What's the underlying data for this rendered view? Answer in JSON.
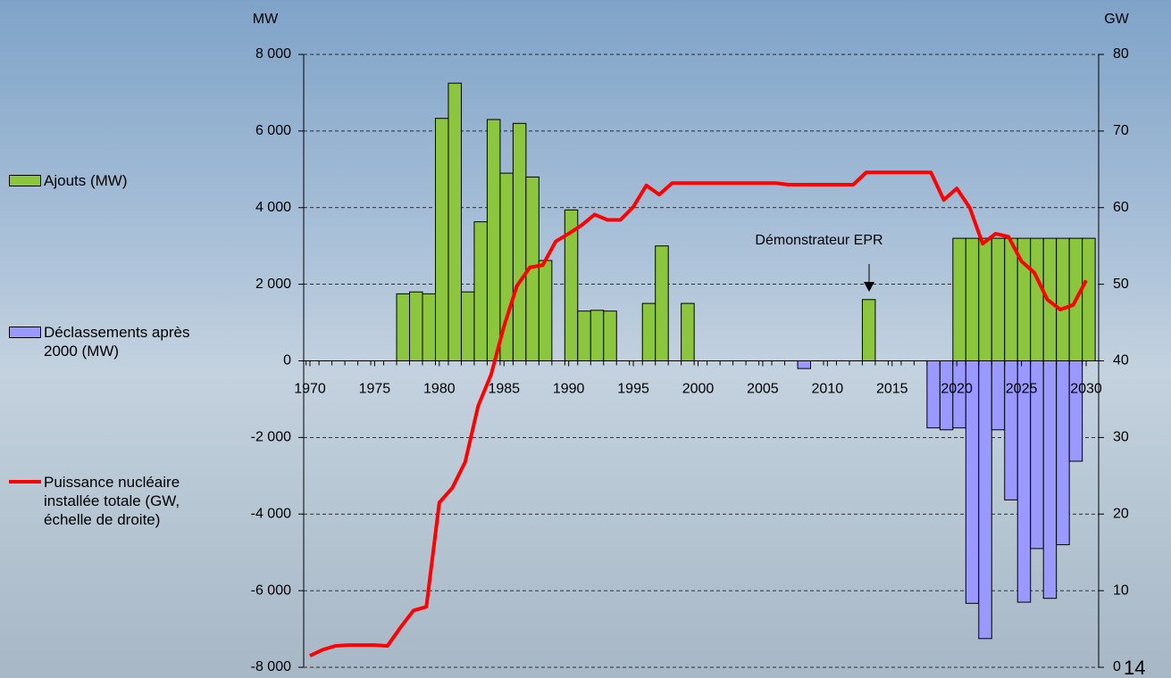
{
  "page_number": "14",
  "chart_data": {
    "type": "bar",
    "y_label": "MW",
    "y2_label": "GW",
    "annotations": [
      "Démonstrateur EPR"
    ],
    "legend": "left",
    "x": [
      1970,
      1971,
      1972,
      1973,
      1974,
      1975,
      1976,
      1977,
      1978,
      1979,
      1980,
      1981,
      1982,
      1983,
      1984,
      1985,
      1986,
      1987,
      1988,
      1989,
      1990,
      1991,
      1992,
      1993,
      1994,
      1995,
      1996,
      1997,
      1998,
      1999,
      2000,
      2001,
      2002,
      2003,
      2004,
      2005,
      2006,
      2007,
      2008,
      2009,
      2010,
      2011,
      2012,
      2013,
      2014,
      2015,
      2016,
      2017,
      2018,
      2019,
      2020,
      2021,
      2022,
      2023,
      2024,
      2025,
      2026,
      2027,
      2028,
      2029,
      2030
    ],
    "xlim": [
      1970,
      2030
    ],
    "xticks": [
      1970,
      1975,
      1980,
      1985,
      1990,
      1995,
      2000,
      2005,
      2010,
      2015,
      2020,
      2025,
      2030
    ],
    "ylim": [
      -8000,
      8000
    ],
    "yticks": [
      {
        "value": -8000,
        "label": "-8 000"
      },
      {
        "value": -6000,
        "label": "-6 000"
      },
      {
        "value": -4000,
        "label": "-4 000"
      },
      {
        "value": -2000,
        "label": "-2 000"
      },
      0,
      {
        "value": 2000,
        "label": "2 000"
      },
      {
        "value": 4000,
        "label": "4 000"
      },
      {
        "value": 6000,
        "label": "6 000"
      },
      {
        "value": 8000,
        "label": "8 000"
      }
    ],
    "y2lim": [
      0,
      80
    ],
    "y2ticks": [
      0,
      10,
      20,
      30,
      40,
      50,
      60,
      70,
      80
    ],
    "grid": true,
    "series": [
      {
        "name": "Ajouts (MW)",
        "type": "bar",
        "color": "#8cc63f",
        "values": [
          null,
          null,
          null,
          null,
          null,
          null,
          null,
          1750,
          1800,
          1750,
          6330,
          7250,
          1800,
          3630,
          6300,
          4900,
          6200,
          4800,
          2620,
          null,
          3940,
          1300,
          1320,
          1300,
          null,
          null,
          1500,
          3000,
          null,
          1500,
          null,
          null,
          null,
          null,
          null,
          null,
          null,
          null,
          null,
          null,
          null,
          null,
          null,
          1600,
          null,
          null,
          null,
          null,
          null,
          null,
          3200,
          3200,
          3200,
          3200,
          3200,
          3200,
          3200,
          3200,
          3200,
          3200,
          3200
        ]
      },
      {
        "name": "Déclassements après 2000 (MW)",
        "type": "bar",
        "color": "#9999ff",
        "values": [
          null,
          null,
          null,
          null,
          null,
          null,
          null,
          null,
          null,
          null,
          null,
          null,
          null,
          null,
          null,
          null,
          null,
          null,
          null,
          null,
          null,
          null,
          null,
          null,
          null,
          null,
          null,
          null,
          null,
          null,
          null,
          null,
          null,
          null,
          null,
          null,
          null,
          null,
          -200,
          null,
          null,
          null,
          null,
          null,
          null,
          null,
          null,
          null,
          -1750,
          -1800,
          -1750,
          -6330,
          -7250,
          -1800,
          -3630,
          -6300,
          -4900,
          -6200,
          -4800,
          -2620,
          null
        ]
      },
      {
        "name": "Puissance nucléaire installée totale (GW, échelle de droite)",
        "type": "line",
        "axis": "y2",
        "color": "#ff0000",
        "values": [
          1.5,
          2.3,
          2.8,
          2.9,
          2.9,
          2.9,
          2.8,
          5.2,
          7.4,
          7.9,
          21.5,
          23.4,
          26.8,
          34.1,
          38.2,
          44.5,
          49.8,
          52.2,
          52.5,
          55.6,
          56.6,
          57.7,
          59.1,
          58.4,
          58.4,
          60.1,
          62.9,
          61.7,
          63.2,
          63.2,
          63.2,
          63.2,
          63.2,
          63.2,
          63.2,
          63.2,
          63.2,
          63.0,
          63.0,
          63.0,
          63.0,
          63.0,
          63.0,
          64.6,
          64.6,
          64.6,
          64.6,
          64.6,
          64.6,
          61.0,
          62.5,
          60.0,
          55.3,
          56.6,
          56.2,
          53.0,
          51.5,
          48.0,
          46.7,
          47.3,
          50.5
        ]
      }
    ]
  }
}
